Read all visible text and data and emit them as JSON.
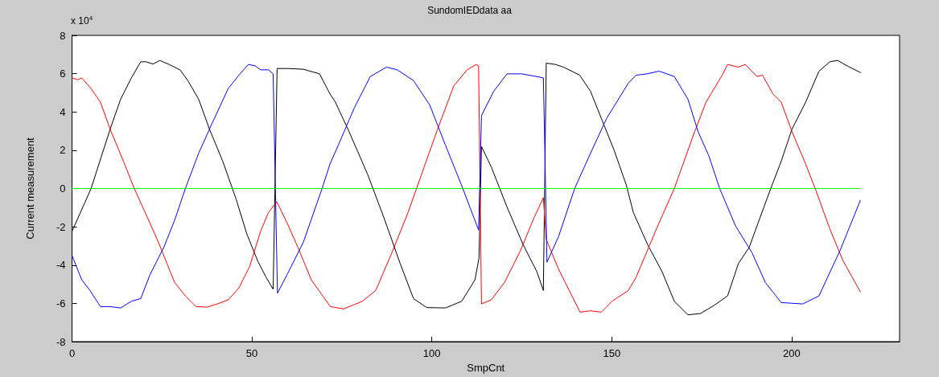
{
  "chart_data": {
    "type": "line",
    "title": "SundomIEDdata aa",
    "xlabel": "SmpCnt",
    "ylabel": "Current measurement",
    "annotations": [
      "x 10$^{4}$"
    ],
    "xlim": [
      0,
      230
    ],
    "xticks": [
      0,
      50,
      100,
      150,
      200
    ],
    "ylim": [
      -8,
      8
    ],
    "yticks": [
      -8,
      -6,
      -4,
      -2,
      0,
      2,
      4,
      6,
      8
    ],
    "grid": false,
    "marker": "none",
    "line_style": "solid",
    "series": [
      {
        "color": "#000000",
        "x": [
          0,
          5.3,
          10.6,
          13.5,
          16.5,
          19.1,
          20.6,
          22.5,
          24.4,
          27,
          30,
          32.2,
          35.2,
          38.2,
          41.9,
          45.6,
          48.6,
          51.6,
          53.9,
          55.9,
          57,
          59.8,
          64.3,
          68.8,
          71.7,
          73.2,
          77,
          82.2,
          86.7,
          91.2,
          94.9,
          98.6,
          103.8,
          108.3,
          112,
          113.1,
          113.3,
          113.8,
          116.5,
          120.9,
          125.4,
          129.2,
          131,
          131.8,
          134.4,
          136.6,
          141.1,
          144.1,
          147.1,
          150.7,
          154.1,
          156,
          160,
          164,
          167.4,
          171.2,
          174.7,
          178.5,
          182.2,
          185.2,
          188.2,
          191.2,
          194.2,
          197.1,
          200.1,
          203.9,
          207.6,
          210.6,
          212.8,
          215.8,
          219.1
        ],
        "values": [
          -2.24,
          0,
          3.1,
          4.66,
          5.78,
          6.62,
          6.62,
          6.5,
          6.69,
          6.48,
          6.2,
          5.64,
          4.66,
          3.1,
          1.42,
          -0.55,
          -2.38,
          -3.78,
          -4.63,
          -5.26,
          6.27,
          6.27,
          6.23,
          5.99,
          4.94,
          4.51,
          2.97,
          0.72,
          -1.53,
          -3.92,
          -5.75,
          -6.22,
          -6.24,
          -5.89,
          -4.77,
          -3.64,
          -2.1,
          2.19,
          1.14,
          -0.97,
          -2.94,
          -4.35,
          -5.33,
          6.55,
          6.48,
          6.34,
          5.92,
          5.08,
          3.67,
          1.98,
          0.15,
          -1.25,
          -2.94,
          -4.35,
          -5.89,
          -6.6,
          -6.53,
          -6.1,
          -5.61,
          -3.92,
          -3.08,
          -1.53,
          0,
          1.42,
          3.1,
          4.51,
          6.13,
          6.62,
          6.69,
          6.37,
          6.06
        ]
      },
      {
        "color": "#ff0000",
        "x": [
          0,
          1.6,
          2.7,
          5.3,
          7.9,
          10.6,
          14.3,
          17.3,
          21,
          24,
          28.5,
          31.5,
          34.5,
          37.4,
          40.4,
          43.4,
          46.4,
          49.4,
          52.4,
          54.6,
          56.9,
          59.8,
          62.8,
          66.5,
          71.8,
          75.5,
          80.7,
          84.4,
          88.9,
          93.4,
          97.9,
          101.6,
          106.1,
          109.8,
          112.4,
          113,
          113.8,
          116.5,
          120.2,
          124.7,
          128.4,
          131,
          131.8,
          135.2,
          138.2,
          141.2,
          144.1,
          147.1,
          150.1,
          154.6,
          156.8,
          162.8,
          167.4,
          172.5,
          176.2,
          180.7,
          182.2,
          185.2,
          187.1,
          190.4,
          191.9,
          194.8,
          197.1,
          200.1,
          203.9,
          206.8,
          210.6,
          214.3,
          219.1
        ],
        "values": [
          5.78,
          5.68,
          5.78,
          5.22,
          4.51,
          3.1,
          1.42,
          0,
          -1.53,
          -2.8,
          -4.91,
          -5.61,
          -6.17,
          -6.2,
          -6.03,
          -5.82,
          -5.19,
          -4.06,
          -2.24,
          -1.25,
          -0.69,
          -1.81,
          -3.08,
          -4.77,
          -6.17,
          -6.29,
          -5.89,
          -5.33,
          -3.36,
          -1.25,
          1.14,
          3.1,
          5.36,
          6.2,
          6.48,
          6.41,
          -6.03,
          -5.82,
          -4.91,
          -3.22,
          -1.53,
          -0.48,
          -2.66,
          -4.2,
          -5.33,
          -6.46,
          -6.39,
          -6.46,
          -5.89,
          -5.33,
          -4.63,
          -1.95,
          0,
          2.69,
          4.51,
          5.92,
          6.48,
          6.34,
          6.48,
          5.85,
          5.92,
          4.94,
          4.51,
          2.97,
          1.28,
          -0.13,
          -2.1,
          -3.78,
          -5.4
        ]
      },
      {
        "color": "#0000ff",
        "x": [
          0,
          2.7,
          5,
          7.9,
          10.6,
          13.5,
          16.5,
          19.1,
          21.7,
          25.5,
          28.5,
          31.5,
          35.2,
          38.9,
          43.4,
          46.4,
          49,
          50.9,
          52.4,
          54.6,
          55.9,
          57.1,
          59.8,
          64.3,
          69.5,
          71.7,
          74,
          78.5,
          82.9,
          87.4,
          90.4,
          94.9,
          99.4,
          103.8,
          108.3,
          113,
          113.8,
          117.2,
          120.9,
          125,
          129.1,
          131,
          131.4,
          132,
          135.2,
          139.7,
          144.1,
          148.6,
          154.6,
          156.8,
          159.8,
          163.2,
          167.4,
          171.2,
          174,
          177,
          180,
          184.4,
          189,
          192.7,
          197.1,
          203.1,
          207.6,
          213.5,
          219.1
        ],
        "values": [
          -3.5,
          -4.77,
          -5.33,
          -6.17,
          -6.17,
          -6.24,
          -5.89,
          -5.75,
          -4.49,
          -3.08,
          -1.67,
          0,
          1.84,
          3.39,
          5.22,
          5.92,
          6.48,
          6.41,
          6.2,
          6.2,
          5.99,
          -5.47,
          -4.49,
          -2.8,
          0,
          1.28,
          2.26,
          4.23,
          5.85,
          6.34,
          6.2,
          5.64,
          4.37,
          2.26,
          0.15,
          -2.17,
          3.81,
          5.08,
          5.99,
          5.99,
          5.85,
          5.78,
          2.12,
          -3.85,
          -2.52,
          0,
          1.84,
          3.67,
          5.5,
          5.92,
          5.99,
          6.13,
          5.85,
          4.66,
          2.97,
          1.7,
          0,
          -1.95,
          -3.36,
          -4.91,
          -5.96,
          -6.03,
          -5.61,
          -3.22,
          -0.62
        ]
      },
      {
        "color": "#00ff00",
        "x": [
          0,
          219
        ],
        "values": [
          0,
          0
        ]
      }
    ]
  }
}
